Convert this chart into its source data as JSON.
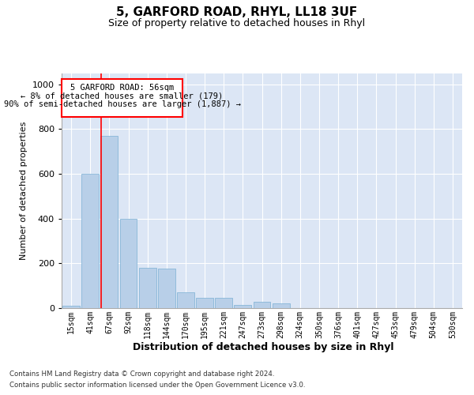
{
  "title1": "5, GARFORD ROAD, RHYL, LL18 3UF",
  "title2": "Size of property relative to detached houses in Rhyl",
  "xlabel": "Distribution of detached houses by size in Rhyl",
  "ylabel": "Number of detached properties",
  "bins": [
    "15sqm",
    "41sqm",
    "67sqm",
    "92sqm",
    "118sqm",
    "144sqm",
    "170sqm",
    "195sqm",
    "221sqm",
    "247sqm",
    "273sqm",
    "298sqm",
    "324sqm",
    "350sqm",
    "376sqm",
    "401sqm",
    "427sqm",
    "453sqm",
    "479sqm",
    "504sqm",
    "530sqm"
  ],
  "values": [
    10,
    600,
    770,
    400,
    180,
    175,
    70,
    45,
    45,
    15,
    30,
    20,
    0,
    0,
    0,
    0,
    0,
    0,
    0,
    0,
    0
  ],
  "bar_color": "#b8cfe8",
  "bar_edge_color": "#7aafd4",
  "ylim": [
    0,
    1050
  ],
  "yticks": [
    0,
    200,
    400,
    600,
    800,
    1000
  ],
  "footer1": "Contains HM Land Registry data © Crown copyright and database right 2024.",
  "footer2": "Contains public sector information licensed under the Open Government Licence v3.0.",
  "bg_color": "#dce6f5",
  "plot_bg_color": "#dce6f5"
}
